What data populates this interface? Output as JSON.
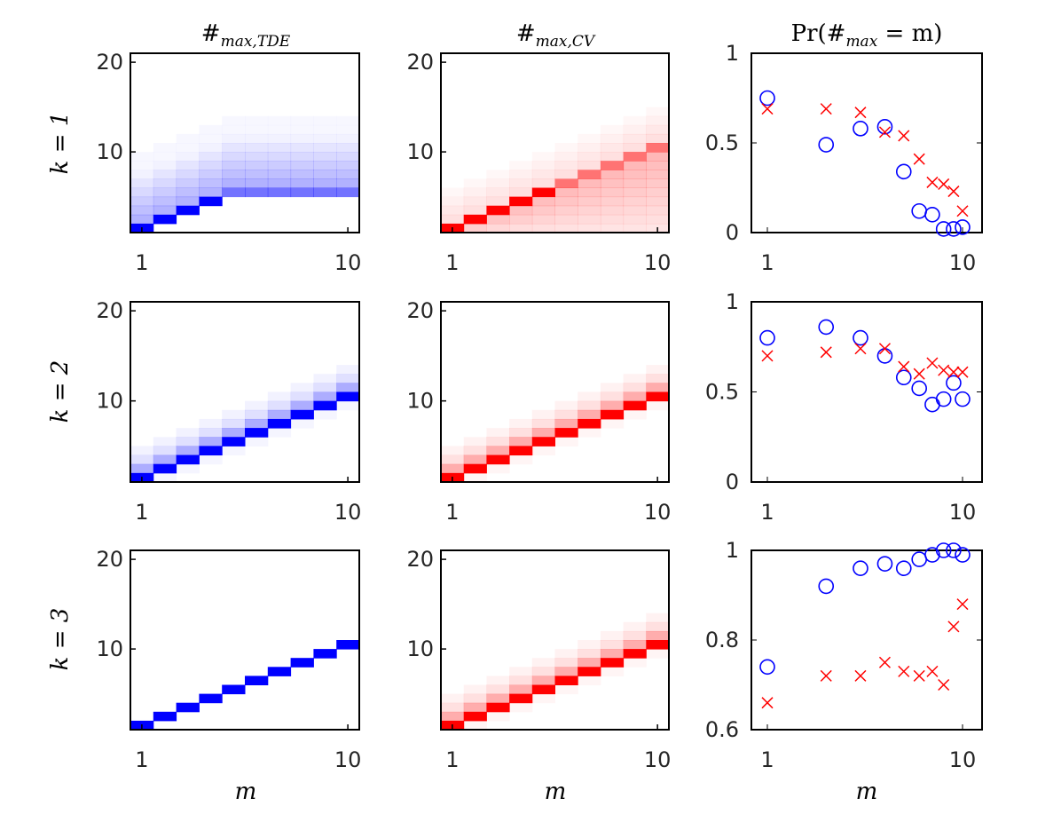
{
  "columns": {
    "tde": {
      "base": "#",
      "sub": "max,TDE"
    },
    "cv": {
      "base": "#",
      "sub": "max,CV"
    },
    "pr": {
      "text": "Pr(#",
      "sub": "max",
      "tail": " = m)"
    }
  },
  "rows": [
    "k = 1",
    "k = 2",
    "k = 3"
  ],
  "xlabel": "m",
  "heatmap_ticks": {
    "x": [
      "1",
      "10"
    ],
    "y": [
      "10",
      "20"
    ]
  },
  "colors": {
    "tde": "#0000ff",
    "cv": "#ff0000"
  },
  "chart_data": [
    {
      "type": "heatmap",
      "panel": "k1-tde",
      "x": [
        1,
        2,
        3,
        4,
        5,
        6,
        7,
        8,
        9,
        10
      ],
      "ylim": [
        1,
        21
      ],
      "peak_y": [
        1,
        2,
        3,
        4,
        5,
        5,
        5,
        5,
        5,
        5
      ],
      "spread": "wide-upper",
      "xticks": [
        "1",
        "10"
      ],
      "yticks": [
        "10",
        "20"
      ]
    },
    {
      "type": "heatmap",
      "panel": "k1-cv",
      "x": [
        1,
        2,
        3,
        4,
        5,
        6,
        7,
        8,
        9,
        10
      ],
      "ylim": [
        1,
        21
      ],
      "peak_y": [
        1,
        2,
        3,
        4,
        5,
        6,
        7,
        8,
        9,
        10
      ],
      "spread": "wide-lower",
      "xticks": [
        "1",
        "10"
      ],
      "yticks": [
        "10",
        "20"
      ]
    },
    {
      "type": "scatter",
      "panel": "k1-pr",
      "ylim": [
        0,
        1
      ],
      "yticks": [
        "0",
        "0.5",
        "1"
      ],
      "xticks": [
        "1",
        "10"
      ],
      "series": [
        {
          "color": "blue",
          "marker": "circle",
          "x": [
            1,
            2,
            3,
            4,
            5,
            6,
            7,
            8,
            9,
            10
          ],
          "y": [
            0.75,
            0.49,
            0.58,
            0.59,
            0.34,
            0.12,
            0.1,
            0.02,
            0.02,
            0.03
          ]
        },
        {
          "color": "red",
          "marker": "x",
          "x": [
            1,
            2,
            3,
            4,
            5,
            6,
            7,
            8,
            9,
            10
          ],
          "y": [
            0.69,
            0.69,
            0.67,
            0.56,
            0.54,
            0.41,
            0.28,
            0.27,
            0.23,
            0.12
          ]
        }
      ]
    },
    {
      "type": "heatmap",
      "panel": "k2-tde",
      "x": [
        1,
        2,
        3,
        4,
        5,
        6,
        7,
        8,
        9,
        10
      ],
      "ylim": [
        1,
        21
      ],
      "peak_y": [
        1,
        2,
        3,
        4,
        5,
        6,
        7,
        8,
        9,
        10
      ],
      "spread": "narrow",
      "xticks": [
        "1",
        "10"
      ],
      "yticks": [
        "10",
        "20"
      ]
    },
    {
      "type": "heatmap",
      "panel": "k2-cv",
      "x": [
        1,
        2,
        3,
        4,
        5,
        6,
        7,
        8,
        9,
        10
      ],
      "ylim": [
        1,
        21
      ],
      "peak_y": [
        1,
        2,
        3,
        4,
        5,
        6,
        7,
        8,
        9,
        10
      ],
      "spread": "narrow",
      "xticks": [
        "1",
        "10"
      ],
      "yticks": [
        "10",
        "20"
      ]
    },
    {
      "type": "scatter",
      "panel": "k2-pr",
      "ylim": [
        0,
        1
      ],
      "yticks": [
        "0",
        "0.5",
        "1"
      ],
      "xticks": [
        "1",
        "10"
      ],
      "series": [
        {
          "color": "blue",
          "marker": "circle",
          "x": [
            1,
            2,
            3,
            4,
            5,
            6,
            7,
            8,
            9,
            10
          ],
          "y": [
            0.8,
            0.86,
            0.8,
            0.7,
            0.58,
            0.52,
            0.43,
            0.46,
            0.55,
            0.46
          ]
        },
        {
          "color": "red",
          "marker": "x",
          "x": [
            1,
            2,
            3,
            4,
            5,
            6,
            7,
            8,
            9,
            10
          ],
          "y": [
            0.7,
            0.72,
            0.74,
            0.74,
            0.64,
            0.6,
            0.66,
            0.62,
            0.61,
            0.61
          ]
        }
      ]
    },
    {
      "type": "heatmap",
      "panel": "k3-tde",
      "x": [
        1,
        2,
        3,
        4,
        5,
        6,
        7,
        8,
        9,
        10
      ],
      "ylim": [
        1,
        21
      ],
      "peak_y": [
        1,
        2,
        3,
        4,
        5,
        6,
        7,
        8,
        9,
        10
      ],
      "spread": "sharp",
      "xticks": [
        "1",
        "10"
      ],
      "yticks": [
        "10",
        "20"
      ]
    },
    {
      "type": "heatmap",
      "panel": "k3-cv",
      "x": [
        1,
        2,
        3,
        4,
        5,
        6,
        7,
        8,
        9,
        10
      ],
      "ylim": [
        1,
        21
      ],
      "peak_y": [
        1,
        2,
        3,
        4,
        5,
        6,
        7,
        8,
        9,
        10
      ],
      "spread": "narrow",
      "xticks": [
        "1",
        "10"
      ],
      "yticks": [
        "10",
        "20"
      ]
    },
    {
      "type": "scatter",
      "panel": "k3-pr",
      "ylim": [
        0.6,
        1
      ],
      "yticks": [
        "0.6",
        "0.8",
        "1"
      ],
      "xticks": [
        "1",
        "10"
      ],
      "series": [
        {
          "color": "blue",
          "marker": "circle",
          "x": [
            1,
            2,
            3,
            4,
            5,
            6,
            7,
            8,
            9,
            10
          ],
          "y": [
            0.74,
            0.92,
            0.96,
            0.97,
            0.96,
            0.98,
            0.99,
            1.0,
            1.0,
            0.99
          ]
        },
        {
          "color": "red",
          "marker": "x",
          "x": [
            1,
            2,
            3,
            4,
            5,
            6,
            7,
            8,
            9,
            10
          ],
          "y": [
            0.66,
            0.72,
            0.72,
            0.75,
            0.73,
            0.72,
            0.73,
            0.7,
            0.83,
            0.88
          ]
        }
      ]
    }
  ]
}
